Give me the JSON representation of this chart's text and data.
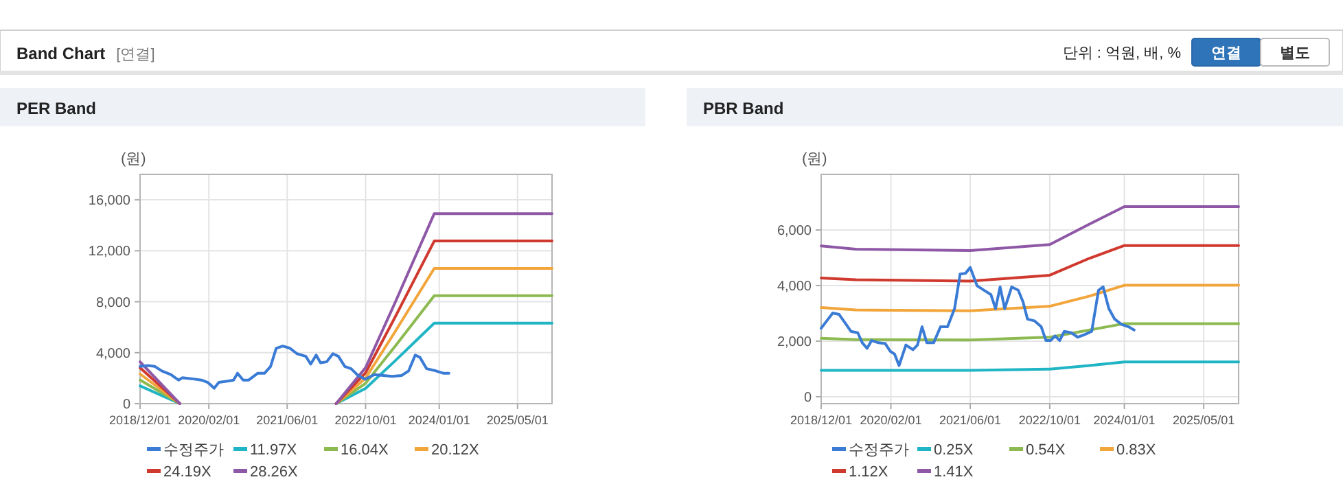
{
  "chart_data": [
    {
      "type": "other",
      "title": "Band Chart",
      "annotations": [
        "[연결]",
        "단위 : 억원, 배, %",
        "연결",
        "별도"
      ]
    },
    {
      "type": "line",
      "title": "PER Band",
      "ylabel": "(원)",
      "xlim": [
        "2018-12-01",
        "2025-12-01"
      ],
      "xticks": [
        {
          "value": "2018-12-01",
          "label": "2018/12/01"
        },
        {
          "value": "2020-02-01",
          "label": "2020/02/01"
        },
        {
          "value": "2021-06-01",
          "label": "2021/06/01"
        },
        {
          "value": "2022-10-01",
          "label": "2022/10/01"
        },
        {
          "value": "2024-01-01",
          "label": "2024/01/01"
        },
        {
          "value": "2025-05-01",
          "label": "2025/05/01"
        }
      ],
      "ylim": [
        0,
        18000
      ],
      "yticks": [
        0,
        {
          "value": 4000,
          "label": "4,000"
        },
        {
          "value": 8000,
          "label": "8,000"
        },
        {
          "value": 12000,
          "label": "12,000"
        },
        {
          "value": 16000,
          "label": "16,000"
        }
      ],
      "grid": true,
      "legend": "bottom",
      "series": [
        {
          "name": "수정주가",
          "color": "#3a7bd5",
          "x": [
            "2018-12-01",
            "2019-01-20",
            "2019-03-03",
            "2019-04-15",
            "2019-06-10",
            "2019-07-28",
            "2019-08-20",
            "2019-10-15",
            "2019-12-18",
            "2020-01-25",
            "2020-03-05",
            "2020-04-03",
            "2020-06-01",
            "2020-07-03",
            "2020-07-28",
            "2020-09-01",
            "2020-10-05",
            "2020-12-01",
            "2021-01-12",
            "2021-02-18",
            "2021-03-25",
            "2021-05-05",
            "2021-06-18",
            "2021-08-01",
            "2021-09-25",
            "2021-10-25",
            "2021-11-28",
            "2021-12-25",
            "2022-02-01",
            "2022-03-12",
            "2022-04-15",
            "2022-05-25",
            "2022-07-03",
            "2022-08-15",
            "2022-09-28",
            "2022-11-25",
            "2023-01-20",
            "2023-03-15",
            "2023-05-12",
            "2023-06-25",
            "2023-08-05",
            "2023-09-03",
            "2023-10-15",
            "2023-12-12",
            "2024-01-25",
            "2024-03-01"
          ],
          "values": [
            2920,
            2990,
            2920,
            2570,
            2280,
            1850,
            2030,
            1960,
            1850,
            1670,
            1210,
            1670,
            1780,
            1850,
            2390,
            1850,
            1850,
            2390,
            2390,
            2920,
            4350,
            4520,
            4350,
            3920,
            3710,
            3100,
            3810,
            3210,
            3280,
            3920,
            3710,
            2920,
            2740,
            2210,
            1920,
            2280,
            2210,
            2140,
            2210,
            2570,
            3810,
            3630,
            2740,
            2570,
            2390,
            2390
          ]
        },
        {
          "name": "11.97X",
          "color": "#1fb5c4",
          "x": [
            "2018-12-01",
            "2019-08-05",
            "2021-01-01",
            "2022-04-01",
            "2022-10-01",
            "2023-04-01",
            "2023-12-01",
            "2025-12-01"
          ],
          "values": [
            1390,
            0,
            null,
            0,
            1200,
            3350,
            6320,
            6320
          ]
        },
        {
          "name": "16.04X",
          "color": "#8cba50",
          "x": [
            "2018-12-01",
            "2019-08-05",
            "2021-01-01",
            "2022-04-01",
            "2022-10-01",
            "2023-04-01",
            "2023-12-01",
            "2025-12-01"
          ],
          "values": [
            1860,
            0,
            null,
            0,
            1600,
            4490,
            8470,
            8470
          ]
        },
        {
          "name": "20.12X",
          "color": "#f2a53a",
          "x": [
            "2018-12-01",
            "2019-08-05",
            "2021-01-01",
            "2022-04-01",
            "2022-10-01",
            "2023-04-01",
            "2023-12-01",
            "2025-12-01"
          ],
          "values": [
            2330,
            0,
            null,
            0,
            2010,
            5630,
            10620,
            10620
          ]
        },
        {
          "name": "24.19X",
          "color": "#d0392e",
          "x": [
            "2018-12-01",
            "2019-08-05",
            "2021-01-01",
            "2022-04-01",
            "2022-10-01",
            "2023-04-01",
            "2023-12-01",
            "2025-12-01"
          ],
          "values": [
            2810,
            0,
            null,
            0,
            2420,
            6770,
            12770,
            12770
          ]
        },
        {
          "name": "28.26X",
          "color": "#8e58a6",
          "x": [
            "2018-12-01",
            "2019-08-05",
            "2021-01-01",
            "2022-04-01",
            "2022-10-01",
            "2023-04-01",
            "2023-12-01",
            "2025-12-01"
          ],
          "values": [
            3280,
            0,
            null,
            0,
            2830,
            7910,
            14920,
            14920
          ]
        }
      ]
    },
    {
      "type": "line",
      "title": "PBR Band",
      "ylabel": "(원)",
      "xlim": [
        "2018-12-01",
        "2025-12-01"
      ],
      "xticks": [
        {
          "value": "2018-12-01",
          "label": "2018/12/01"
        },
        {
          "value": "2020-02-01",
          "label": "2020/02/01"
        },
        {
          "value": "2021-06-01",
          "label": "2021/06/01"
        },
        {
          "value": "2022-10-01",
          "label": "2022/10/01"
        },
        {
          "value": "2024-01-01",
          "label": "2024/01/01"
        },
        {
          "value": "2025-05-01",
          "label": "2025/05/01"
        }
      ],
      "ylim": [
        -250,
        8000
      ],
      "yticks": [
        0,
        {
          "value": 2000,
          "label": "2,000"
        },
        {
          "value": 4000,
          "label": "4,000"
        },
        {
          "value": 6000,
          "label": "6,000"
        }
      ],
      "grid": true,
      "legend": "bottom",
      "series": [
        {
          "name": "수정주가",
          "color": "#3a7bd5",
          "x": [
            "2018-12-01",
            "2018-12-29",
            "2019-02-10",
            "2019-03-21",
            "2019-05-03",
            "2019-06-01",
            "2019-07-13",
            "2019-08-10",
            "2019-09-08",
            "2019-10-06",
            "2019-11-17",
            "2019-12-29",
            "2020-01-27",
            "2020-02-24",
            "2020-03-22",
            "2020-05-03",
            "2020-06-15",
            "2020-07-13",
            "2020-08-10",
            "2020-09-08",
            "2020-10-20",
            "2020-12-01",
            "2021-01-13",
            "2021-02-25",
            "2021-03-31",
            "2021-05-03",
            "2021-06-01",
            "2021-07-13",
            "2021-08-25",
            "2021-10-06",
            "2021-11-03",
            "2021-12-01",
            "2021-12-29",
            "2022-02-10",
            "2022-03-22",
            "2022-04-20",
            "2022-05-18",
            "2022-06-29",
            "2022-08-10",
            "2022-09-08",
            "2022-10-06",
            "2022-11-03",
            "2022-12-01",
            "2022-12-29",
            "2023-02-10",
            "2023-03-22",
            "2023-05-03",
            "2023-06-15",
            "2023-07-27",
            "2023-08-24",
            "2023-09-28",
            "2023-11-03",
            "2023-12-15",
            "2024-01-27",
            "2024-03-01"
          ],
          "values": [
            2466,
            2680,
            3010,
            2960,
            2600,
            2350,
            2300,
            1940,
            1740,
            2020,
            1940,
            1910,
            1640,
            1530,
            1120,
            1860,
            1690,
            1860,
            2515,
            1940,
            1940,
            2515,
            2515,
            3170,
            4410,
            4440,
            4650,
            3990,
            3830,
            3670,
            3170,
            3950,
            3170,
            3950,
            3830,
            3420,
            2790,
            2730,
            2515,
            2020,
            2020,
            2185,
            2020,
            2350,
            2300,
            2140,
            2235,
            2350,
            3830,
            3950,
            3170,
            2790,
            2600,
            2515,
            2400
          ]
        },
        {
          "name": "0.25X",
          "color": "#1fb5c4",
          "x": [
            "2018-12-01",
            "2019-07-01",
            "2021-06-01",
            "2022-10-01",
            "2023-06-01",
            "2024-01-01",
            "2025-12-01"
          ],
          "values": [
            950,
            950,
            950,
            990,
            1120,
            1250,
            1250
          ]
        },
        {
          "name": "0.54X",
          "color": "#8cba50",
          "x": [
            "2018-12-01",
            "2019-07-01",
            "2021-06-01",
            "2022-10-01",
            "2023-06-01",
            "2024-01-01",
            "2025-12-01"
          ],
          "values": [
            2100,
            2055,
            2040,
            2140,
            2400,
            2630,
            2630
          ]
        },
        {
          "name": "0.83X",
          "color": "#f2a53a",
          "x": [
            "2018-12-01",
            "2019-07-01",
            "2021-06-01",
            "2022-10-01",
            "2023-06-01",
            "2024-01-01",
            "2025-12-01"
          ],
          "values": [
            3210,
            3120,
            3090,
            3255,
            3620,
            4010,
            4010
          ]
        },
        {
          "name": "1.12X",
          "color": "#d0392e",
          "x": [
            "2018-12-01",
            "2019-07-01",
            "2021-06-01",
            "2022-10-01",
            "2023-06-01",
            "2024-01-01",
            "2025-12-01"
          ],
          "values": [
            4270,
            4210,
            4160,
            4370,
            4980,
            5440,
            5440
          ]
        },
        {
          "name": "1.41X",
          "color": "#8e58a6",
          "x": [
            "2018-12-01",
            "2019-07-01",
            "2021-06-01",
            "2022-10-01",
            "2023-06-01",
            "2024-01-01",
            "2025-12-01"
          ],
          "values": [
            5425,
            5310,
            5260,
            5475,
            6210,
            6840,
            6840
          ]
        }
      ]
    }
  ]
}
